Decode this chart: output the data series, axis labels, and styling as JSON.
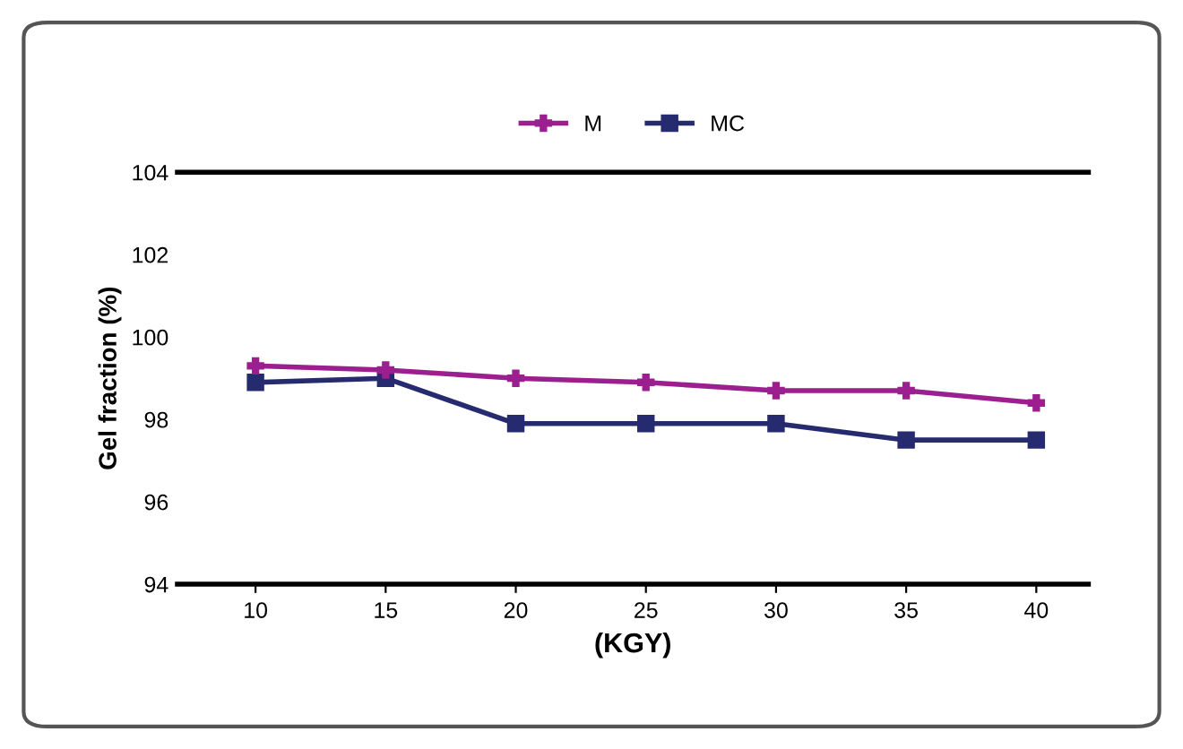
{
  "chart_data": {
    "type": "line",
    "ylabel": "Gel fraction (%)",
    "xlabel": "(KGY)",
    "x": [
      10,
      15,
      20,
      25,
      30,
      35,
      40
    ],
    "xlim": [
      7,
      42
    ],
    "xticks": [
      10,
      15,
      20,
      25,
      30,
      35,
      40
    ],
    "ylim": [
      94,
      104
    ],
    "yticks": [
      94,
      96,
      98,
      100,
      102,
      104
    ],
    "series": [
      {
        "name": "M",
        "color": "#9b1f8f",
        "marker": "cross",
        "values": [
          99.3,
          99.2,
          99.0,
          98.9,
          98.7,
          98.7,
          98.4
        ]
      },
      {
        "name": "MC",
        "color": "#262a6e",
        "marker": "square",
        "values": [
          98.9,
          99.0,
          97.9,
          97.9,
          97.9,
          97.5,
          97.5
        ]
      }
    ],
    "legend": "top",
    "grid": false,
    "line_style": "solid"
  }
}
